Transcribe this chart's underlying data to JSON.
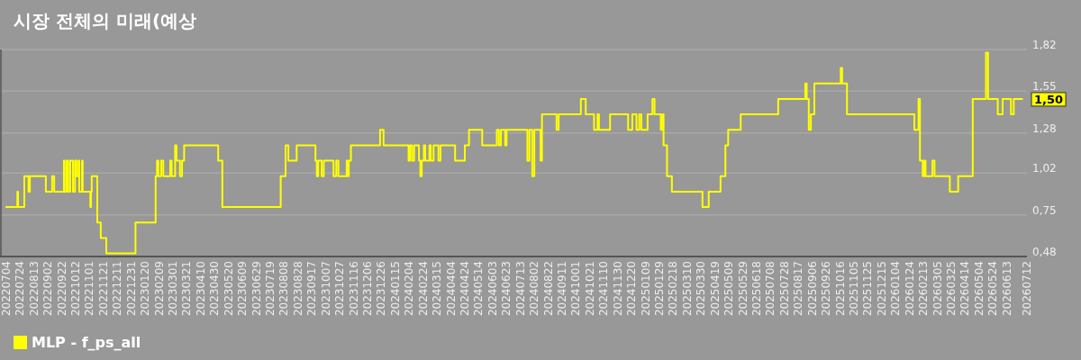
{
  "chart_data": {
    "type": "step",
    "title": "시장 전체의 미래(예상",
    "x": [
      "2022-07-03",
      "2022-07-20",
      "2022-07-21",
      "2022-07-30",
      "2022-08-05",
      "2022-08-07",
      "2022-08-30",
      "2022-09-08",
      "2022-09-11",
      "2022-09-25",
      "2022-09-26",
      "2022-09-29",
      "2022-10-01",
      "2022-10-04",
      "2022-10-08",
      "2022-10-11",
      "2022-10-13",
      "2022-10-16",
      "2022-10-17",
      "2022-10-21",
      "2022-10-22",
      "2022-11-02",
      "2022-11-03",
      "2022-11-04",
      "2022-11-12",
      "2022-11-17",
      "2022-11-25",
      "2023-01-06",
      "2023-02-04",
      "2023-02-06",
      "2023-02-08",
      "2023-02-12",
      "2023-02-15",
      "2023-02-25",
      "2023-02-27",
      "2023-03-04",
      "2023-03-06",
      "2023-03-11",
      "2023-03-14",
      "2023-03-17",
      "2023-05-05",
      "2023-05-11",
      "2023-08-03",
      "2023-08-10",
      "2023-08-14",
      "2023-08-26",
      "2023-09-22",
      "2023-09-24",
      "2023-09-26",
      "2023-10-01",
      "2023-10-04",
      "2023-10-18",
      "2023-10-22",
      "2023-10-25",
      "2023-11-06",
      "2023-11-08",
      "2023-11-09",
      "2023-11-12",
      "2023-12-24",
      "2023-12-29",
      "2024-02-03",
      "2024-02-05",
      "2024-02-08",
      "2024-02-11",
      "2024-02-18",
      "2024-02-20",
      "2024-02-22",
      "2024-02-25",
      "2024-02-27",
      "2024-03-04",
      "2024-03-06",
      "2024-03-10",
      "2024-03-17",
      "2024-03-20",
      "2024-04-10",
      "2024-04-24",
      "2024-04-30",
      "2024-05-19",
      "2024-06-09",
      "2024-06-12",
      "2024-06-15",
      "2024-06-21",
      "2024-06-23",
      "2024-07-23",
      "2024-07-26",
      "2024-07-30",
      "2024-08-02",
      "2024-08-11",
      "2024-08-13",
      "2024-09-03",
      "2024-09-06",
      "2024-10-08",
      "2024-10-15",
      "2024-10-27",
      "2024-11-01",
      "2024-11-03",
      "2024-11-19",
      "2024-12-15",
      "2024-12-21",
      "2024-12-27",
      "2024-12-31",
      "2025-01-03",
      "2025-01-12",
      "2025-01-19",
      "2025-01-22",
      "2025-01-31",
      "2025-02-02",
      "2025-02-04",
      "2025-02-09",
      "2025-02-16",
      "2025-04-01",
      "2025-04-10",
      "2025-04-27",
      "2025-05-04",
      "2025-05-08",
      "2025-05-26",
      "2025-07-19",
      "2025-08-27",
      "2025-08-29",
      "2025-09-01",
      "2025-09-04",
      "2025-09-09",
      "2025-10-17",
      "2025-10-19",
      "2025-10-26",
      "2026-01-31",
      "2026-02-06",
      "2026-02-08",
      "2026-02-12",
      "2026-02-14",
      "2026-02-16",
      "2026-02-26",
      "2026-03-01",
      "2026-03-23",
      "2026-04-04",
      "2026-04-25",
      "2026-05-14",
      "2026-05-17",
      "2026-05-31",
      "2026-06-07",
      "2026-06-19",
      "2026-06-23",
      "2026-07-06"
    ],
    "series": [
      {
        "name": "MLP - f_ps_all",
        "color": "#ffff00",
        "values": [
          0.8,
          0.9,
          0.8,
          1.0,
          0.9,
          1.0,
          0.9,
          1.0,
          0.9,
          1.1,
          0.9,
          1.1,
          0.9,
          1.1,
          0.9,
          1.1,
          1.0,
          1.1,
          0.9,
          1.1,
          0.9,
          0.8,
          0.9,
          1.0,
          0.7,
          0.6,
          0.5,
          0.7,
          1.0,
          1.1,
          1.0,
          1.1,
          1.0,
          1.1,
          1.0,
          1.2,
          1.1,
          1.0,
          1.1,
          1.2,
          1.1,
          0.8,
          1.0,
          1.2,
          1.1,
          1.2,
          1.1,
          1.0,
          1.1,
          1.0,
          1.1,
          1.0,
          1.1,
          1.0,
          1.1,
          1.0,
          1.1,
          1.2,
          1.3,
          1.2,
          1.1,
          1.2,
          1.1,
          1.2,
          1.1,
          1.0,
          1.1,
          1.2,
          1.1,
          1.2,
          1.1,
          1.2,
          1.1,
          1.2,
          1.1,
          1.2,
          1.3,
          1.2,
          1.3,
          1.2,
          1.3,
          1.2,
          1.3,
          1.1,
          1.3,
          1.0,
          1.3,
          1.1,
          1.4,
          1.3,
          1.4,
          1.5,
          1.4,
          1.3,
          1.4,
          1.3,
          1.4,
          1.3,
          1.4,
          1.3,
          1.4,
          1.3,
          1.4,
          1.5,
          1.4,
          1.3,
          1.4,
          1.2,
          1.0,
          0.9,
          0.8,
          0.9,
          1.0,
          1.2,
          1.3,
          1.4,
          1.5,
          1.6,
          1.5,
          1.3,
          1.4,
          1.6,
          1.7,
          1.6,
          1.4,
          1.3,
          1.5,
          1.1,
          1.0,
          1.1,
          1.0,
          1.1,
          1.0,
          0.9,
          1.0,
          1.5,
          1.8,
          1.5,
          1.4,
          1.5,
          1.4,
          1.5,
          1.5
        ]
      }
    ],
    "xlim": [
      "2022-06-25",
      "2026-07-12"
    ],
    "xticks": [
      {
        "value": "2022-07-04",
        "label": "20220704"
      },
      {
        "value": "2022-07-24",
        "label": "20220724"
      },
      {
        "value": "2022-08-13",
        "label": "20220813"
      },
      {
        "value": "2022-09-02",
        "label": "20220902"
      },
      {
        "value": "2022-09-22",
        "label": "20220922"
      },
      {
        "value": "2022-10-12",
        "label": "20221012"
      },
      {
        "value": "2022-11-01",
        "label": "20221101"
      },
      {
        "value": "2022-11-21",
        "label": "20221121"
      },
      {
        "value": "2022-12-11",
        "label": "20221211"
      },
      {
        "value": "2022-12-31",
        "label": "20221231"
      },
      {
        "value": "2023-01-20",
        "label": "20230120"
      },
      {
        "value": "2023-02-09",
        "label": "20230209"
      },
      {
        "value": "2023-03-01",
        "label": "20230301"
      },
      {
        "value": "2023-03-21",
        "label": "20230321"
      },
      {
        "value": "2023-04-10",
        "label": "20230410"
      },
      {
        "value": "2023-04-30",
        "label": "20230430"
      },
      {
        "value": "2023-05-20",
        "label": "20230520"
      },
      {
        "value": "2023-06-09",
        "label": "20230609"
      },
      {
        "value": "2023-06-29",
        "label": "20230629"
      },
      {
        "value": "2023-07-19",
        "label": "20230719"
      },
      {
        "value": "2023-08-08",
        "label": "20230808"
      },
      {
        "value": "2023-08-28",
        "label": "20230828"
      },
      {
        "value": "2023-09-17",
        "label": "20230917"
      },
      {
        "value": "2023-10-07",
        "label": "20231007"
      },
      {
        "value": "2023-10-27",
        "label": "20231027"
      },
      {
        "value": "2023-11-16",
        "label": "20231116"
      },
      {
        "value": "2023-12-06",
        "label": "20231206"
      },
      {
        "value": "2023-12-26",
        "label": "20231226"
      },
      {
        "value": "2024-01-15",
        "label": "20240115"
      },
      {
        "value": "2024-02-04",
        "label": "20240204"
      },
      {
        "value": "2024-02-24",
        "label": "20240224"
      },
      {
        "value": "2024-03-15",
        "label": "20240315"
      },
      {
        "value": "2024-04-04",
        "label": "20240404"
      },
      {
        "value": "2024-04-24",
        "label": "20240424"
      },
      {
        "value": "2024-05-14",
        "label": "20240514"
      },
      {
        "value": "2024-06-03",
        "label": "20240603"
      },
      {
        "value": "2024-06-23",
        "label": "20240623"
      },
      {
        "value": "2024-07-13",
        "label": "20240713"
      },
      {
        "value": "2024-08-02",
        "label": "20240802"
      },
      {
        "value": "2024-08-22",
        "label": "20240822"
      },
      {
        "value": "2024-09-11",
        "label": "20240911"
      },
      {
        "value": "2024-10-01",
        "label": "20241001"
      },
      {
        "value": "2024-10-21",
        "label": "20241021"
      },
      {
        "value": "2024-11-10",
        "label": "20241110"
      },
      {
        "value": "2024-11-30",
        "label": "20241130"
      },
      {
        "value": "2024-12-20",
        "label": "20241220"
      },
      {
        "value": "2025-01-09",
        "label": "20250109"
      },
      {
        "value": "2025-01-29",
        "label": "20250129"
      },
      {
        "value": "2025-02-18",
        "label": "20250218"
      },
      {
        "value": "2025-03-10",
        "label": "20250310"
      },
      {
        "value": "2025-03-30",
        "label": "20250330"
      },
      {
        "value": "2025-04-19",
        "label": "20250419"
      },
      {
        "value": "2025-05-09",
        "label": "20250509"
      },
      {
        "value": "2025-05-29",
        "label": "20250529"
      },
      {
        "value": "2025-06-18",
        "label": "20250618"
      },
      {
        "value": "2025-07-08",
        "label": "20250708"
      },
      {
        "value": "2025-07-28",
        "label": "20250728"
      },
      {
        "value": "2025-08-17",
        "label": "20250817"
      },
      {
        "value": "2025-09-06",
        "label": "20250906"
      },
      {
        "value": "2025-09-26",
        "label": "20250926"
      },
      {
        "value": "2025-10-16",
        "label": "20251016"
      },
      {
        "value": "2025-11-05",
        "label": "20251105"
      },
      {
        "value": "2025-11-25",
        "label": "20251125"
      },
      {
        "value": "2025-12-15",
        "label": "20251215"
      },
      {
        "value": "2026-01-04",
        "label": "20260104"
      },
      {
        "value": "2026-01-24",
        "label": "20260124"
      },
      {
        "value": "2026-02-13",
        "label": "20260213"
      },
      {
        "value": "2026-03-05",
        "label": "20260305"
      },
      {
        "value": "2026-03-25",
        "label": "20260325"
      },
      {
        "value": "2026-04-14",
        "label": "20260414"
      },
      {
        "value": "2026-05-04",
        "label": "20260504"
      },
      {
        "value": "2026-05-24",
        "label": "20260524"
      },
      {
        "value": "2026-06-13",
        "label": "20260613"
      },
      {
        "value": "2026-07-12",
        "label": "20260712"
      }
    ],
    "ylim": [
      0.48,
      1.82
    ],
    "yticks": [
      {
        "value": 0.48,
        "label": "0,48"
      },
      {
        "value": 0.75,
        "label": "0,75"
      },
      {
        "value": 1.02,
        "label": "1,02"
      },
      {
        "value": 1.28,
        "label": "1,28"
      },
      {
        "value": 1.55,
        "label": "1,55"
      },
      {
        "value": 1.82,
        "label": "1,82"
      }
    ],
    "annotations": [
      {
        "text": "1,50",
        "x": "2026-07-06",
        "y": 1.5
      }
    ],
    "grid": "y",
    "legend": "bottom"
  }
}
